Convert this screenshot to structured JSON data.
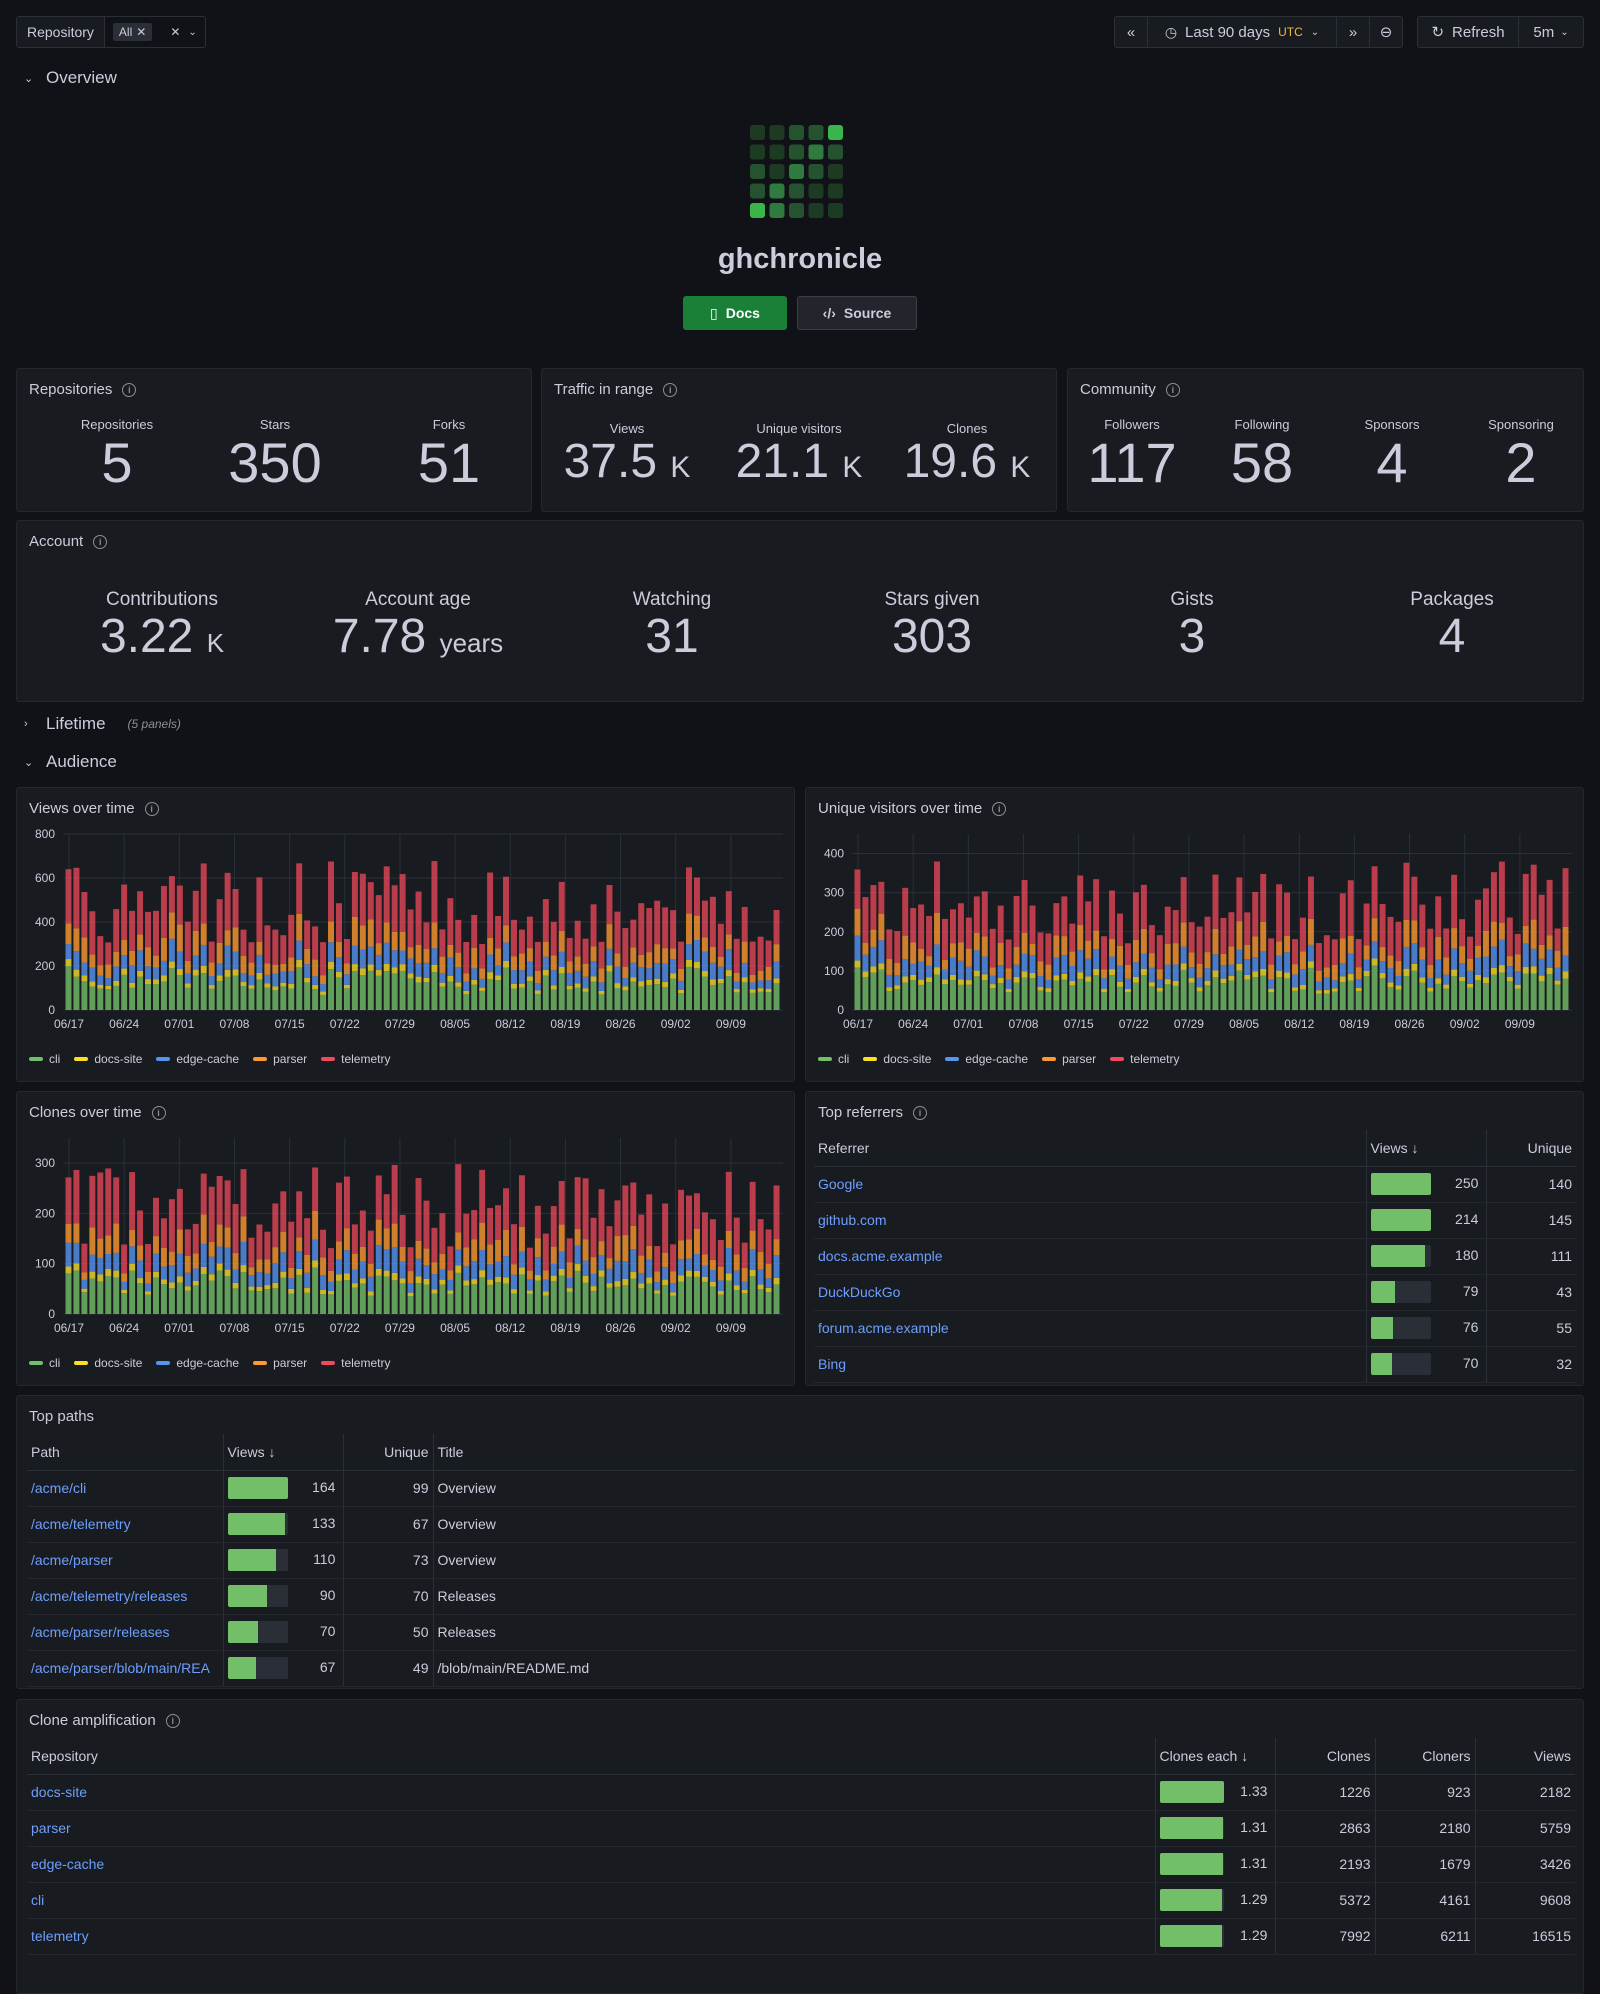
{
  "toolbar": {
    "var_label": "Repository",
    "var_chip": "All",
    "time_range": "Last 90 days",
    "timezone": "UTC",
    "refresh_label": "Refresh",
    "refresh_interval": "5m"
  },
  "rows": {
    "overview": "Overview",
    "lifetime": "Lifetime",
    "lifetime_sub": "(5 panels)",
    "audience": "Audience"
  },
  "header": {
    "name": "ghchronicle",
    "docs_label": "Docs",
    "source_label": "Source"
  },
  "repositories": {
    "title": "Repositories",
    "stats": [
      {
        "label": "Repositories",
        "value": "5"
      },
      {
        "label": "Stars",
        "value": "350"
      },
      {
        "label": "Forks",
        "value": "51"
      }
    ]
  },
  "traffic": {
    "title": "Traffic in range",
    "stats": [
      {
        "label": "Views",
        "value": "37.5",
        "unit": "K"
      },
      {
        "label": "Unique visitors",
        "value": "21.1",
        "unit": "K"
      },
      {
        "label": "Clones",
        "value": "19.6",
        "unit": "K"
      }
    ]
  },
  "community": {
    "title": "Community",
    "stats": [
      {
        "label": "Followers",
        "value": "117"
      },
      {
        "label": "Following",
        "value": "58"
      },
      {
        "label": "Sponsors",
        "value": "4"
      },
      {
        "label": "Sponsoring",
        "value": "2"
      }
    ]
  },
  "account": {
    "title": "Account",
    "stats": [
      {
        "label": "Contributions",
        "value": "3.22",
        "unit": "K"
      },
      {
        "label": "Account age",
        "value": "7.78",
        "unit": "years"
      },
      {
        "label": "Watching",
        "value": "31",
        "unit": ""
      },
      {
        "label": "Stars given",
        "value": "303",
        "unit": ""
      },
      {
        "label": "Gists",
        "value": "3",
        "unit": ""
      },
      {
        "label": "Packages",
        "value": "4",
        "unit": ""
      }
    ]
  },
  "colors": {
    "cli": "#73bf69",
    "docs-site": "#fade2a",
    "edge-cache": "#5794f2",
    "parser": "#ff9830",
    "telemetry": "#f2495c"
  },
  "chart_data": [
    {
      "type": "bar",
      "stacked": true,
      "title": "Views over time",
      "x_ticks": [
        "06/17",
        "06/24",
        "07/01",
        "07/08",
        "07/15",
        "07/22",
        "07/29",
        "08/05",
        "08/12",
        "08/19",
        "08/26",
        "09/02",
        "09/09"
      ],
      "ylim": [
        0,
        800
      ],
      "y_ticks": [
        0,
        200,
        400,
        600,
        800
      ],
      "series": [
        {
          "name": "cli"
        },
        {
          "name": "docs-site"
        },
        {
          "name": "edge-cache"
        },
        {
          "name": "parser"
        },
        {
          "name": "telemetry"
        }
      ],
      "legend": "bottom"
    },
    {
      "type": "bar",
      "stacked": true,
      "title": "Unique visitors over time",
      "x_ticks": [
        "06/17",
        "06/24",
        "07/01",
        "07/08",
        "07/15",
        "07/22",
        "07/29",
        "08/05",
        "08/12",
        "08/19",
        "08/26",
        "09/02",
        "09/09"
      ],
      "ylim": [
        0,
        450
      ],
      "y_ticks": [
        0,
        100,
        200,
        300,
        400
      ],
      "series": [
        {
          "name": "cli"
        },
        {
          "name": "docs-site"
        },
        {
          "name": "edge-cache"
        },
        {
          "name": "parser"
        },
        {
          "name": "telemetry"
        }
      ],
      "legend": "bottom"
    },
    {
      "type": "bar",
      "stacked": true,
      "title": "Clones over time",
      "x_ticks": [
        "06/17",
        "06/24",
        "07/01",
        "07/08",
        "07/15",
        "07/22",
        "07/29",
        "08/05",
        "08/12",
        "08/19",
        "08/26",
        "09/02",
        "09/09"
      ],
      "ylim": [
        0,
        350
      ],
      "y_ticks": [
        0,
        100,
        200,
        300
      ],
      "series": [
        {
          "name": "cli"
        },
        {
          "name": "docs-site"
        },
        {
          "name": "edge-cache"
        },
        {
          "name": "parser"
        },
        {
          "name": "telemetry"
        }
      ],
      "legend": "bottom"
    }
  ],
  "referrers": {
    "title": "Top referrers",
    "columns": [
      "Referrer",
      "Views",
      "Unique"
    ],
    "rows": [
      {
        "name": "Google",
        "views": "250",
        "unique": "140",
        "frac": 1.0
      },
      {
        "name": "github.com",
        "views": "214",
        "unique": "145",
        "frac": 1.0
      },
      {
        "name": "docs.acme.example",
        "views": "180",
        "unique": "111",
        "frac": 0.9
      },
      {
        "name": "DuckDuckGo",
        "views": "79",
        "unique": "43",
        "frac": 0.4
      },
      {
        "name": "forum.acme.example",
        "views": "76",
        "unique": "55",
        "frac": 0.38
      },
      {
        "name": "Bing",
        "views": "70",
        "unique": "32",
        "frac": 0.35
      }
    ]
  },
  "paths": {
    "title": "Top paths",
    "columns": [
      "Path",
      "Views",
      "Unique",
      "Title"
    ],
    "rows": [
      {
        "path": "/acme/cli",
        "views": "164",
        "unique": "99",
        "title": "Overview",
        "frac": 1.0
      },
      {
        "path": "/acme/telemetry",
        "views": "133",
        "unique": "67",
        "title": "Overview",
        "frac": 0.95
      },
      {
        "path": "/acme/parser",
        "views": "110",
        "unique": "73",
        "title": "Overview",
        "frac": 0.8
      },
      {
        "path": "/acme/telemetry/releases",
        "views": "90",
        "unique": "70",
        "title": "Releases",
        "frac": 0.65
      },
      {
        "path": "/acme/parser/releases",
        "views": "70",
        "unique": "50",
        "title": "Releases",
        "frac": 0.5
      },
      {
        "path": "/acme/parser/blob/main/REA",
        "views": "67",
        "unique": "49",
        "title": "/blob/main/README.md",
        "frac": 0.48
      }
    ]
  },
  "amplification": {
    "title": "Clone amplification",
    "columns": [
      "Repository",
      "Clones each",
      "Clones",
      "Cloners",
      "Views"
    ],
    "rows": [
      {
        "repo": "docs-site",
        "each": "1.33",
        "clones": "1226",
        "cloners": "923",
        "views": "2182"
      },
      {
        "repo": "parser",
        "each": "1.31",
        "clones": "2863",
        "cloners": "2180",
        "views": "5759"
      },
      {
        "repo": "edge-cache",
        "each": "1.31",
        "clones": "2193",
        "cloners": "1679",
        "views": "3426"
      },
      {
        "repo": "cli",
        "each": "1.29",
        "clones": "5372",
        "cloners": "4161",
        "views": "9608"
      },
      {
        "repo": "telemetry",
        "each": "1.29",
        "clones": "7992",
        "cloners": "6211",
        "views": "16515"
      }
    ]
  }
}
